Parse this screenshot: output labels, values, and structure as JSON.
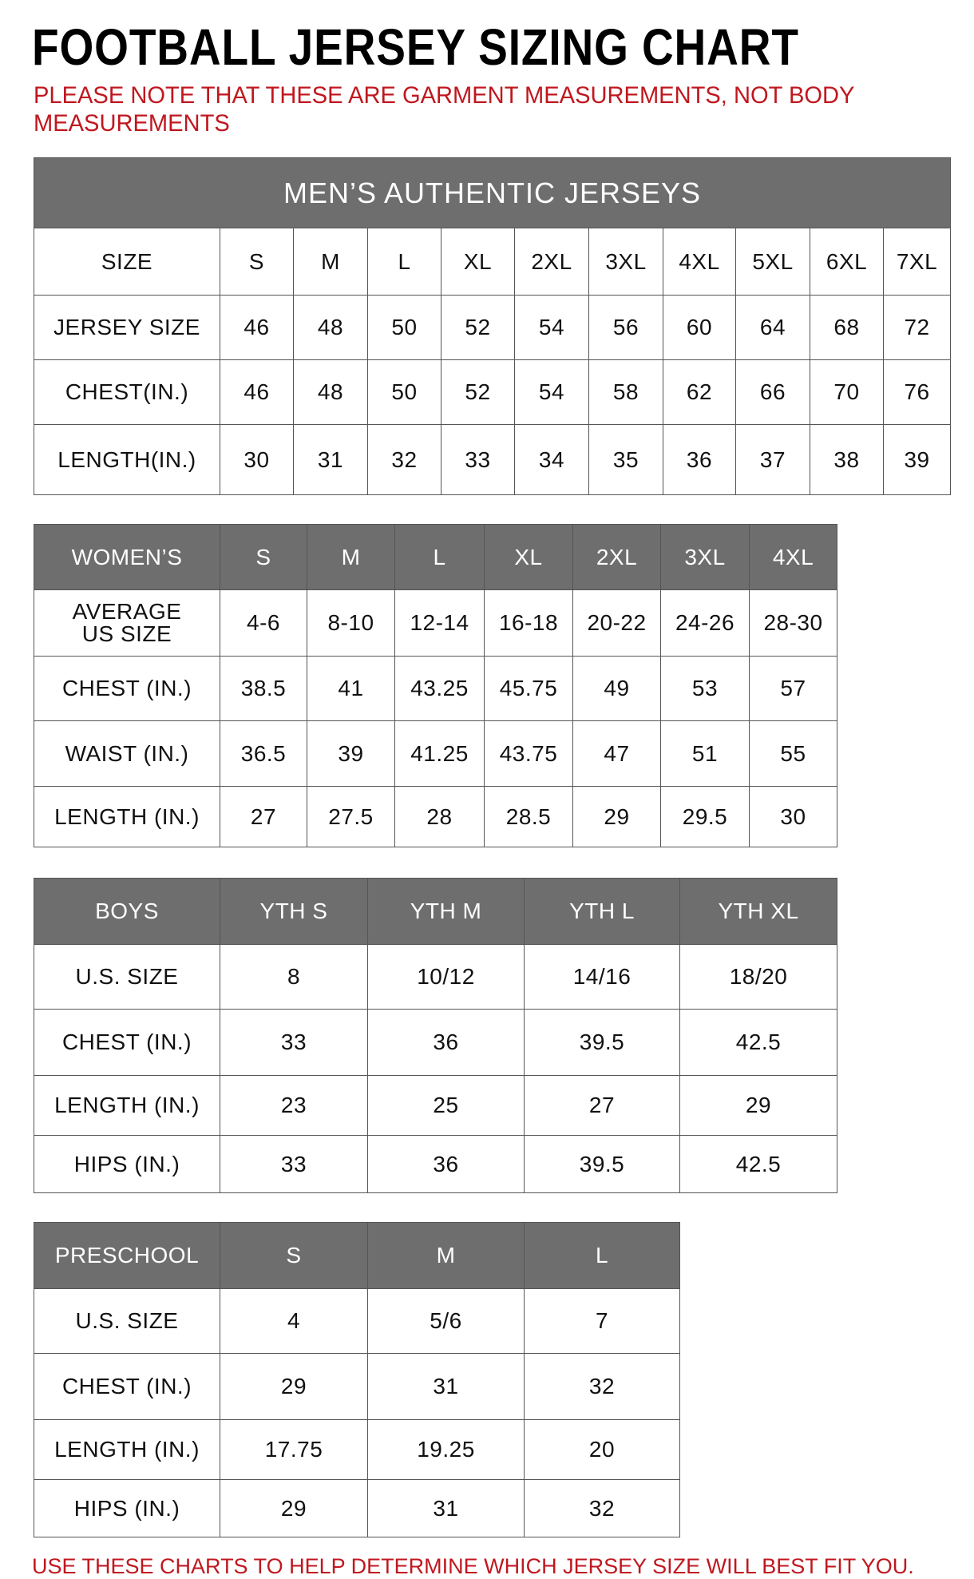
{
  "title": "FOOTBALL JERSEY SIZING CHART",
  "note": "PLEASE NOTE THAT THESE ARE GARMENT MEASUREMENTS, NOT BODY MEASUREMENTS",
  "footer": "USE THESE CHARTS TO HELP DETERMINE WHICH JERSEY SIZE WILL BEST FIT YOU.",
  "colors": {
    "header_bg": "#6e6e6e",
    "note_red": "#c0171f"
  },
  "tables": [
    {
      "id": "mens",
      "caption": "MEN’S AUTHENTIC JERSEYS",
      "header": [
        "SIZE",
        "S",
        "M",
        "L",
        "XL",
        "2XL",
        "3XL",
        "4XL",
        "5XL",
        "6XL",
        "7XL"
      ],
      "header_style": "plain",
      "rows": [
        [
          "JERSEY SIZE",
          "46",
          "48",
          "50",
          "52",
          "54",
          "56",
          "60",
          "64",
          "68",
          "72"
        ],
        [
          "CHEST(IN.)",
          "46",
          "48",
          "50",
          "52",
          "54",
          "58",
          "62",
          "66",
          "70",
          "76"
        ],
        [
          "LENGTH(IN.)",
          "30",
          "31",
          "32",
          "33",
          "34",
          "35",
          "36",
          "37",
          "38",
          "39"
        ]
      ]
    },
    {
      "id": "womens",
      "header": [
        "WOMEN’S",
        "S",
        "M",
        "L",
        "XL",
        "2XL",
        "3XL",
        "4XL"
      ],
      "header_style": "dark",
      "rows": [
        [
          "AVERAGE US SIZE",
          "4-6",
          "8-10",
          "12-14",
          "16-18",
          "20-22",
          "24-26",
          "28-30"
        ],
        [
          "CHEST (IN.)",
          "38.5",
          "41",
          "43.25",
          "45.75",
          "49",
          "53",
          "57"
        ],
        [
          "WAIST (IN.)",
          "36.5",
          "39",
          "41.25",
          "43.75",
          "47",
          "51",
          "55"
        ],
        [
          "LENGTH (IN.)",
          "27",
          "27.5",
          "28",
          "28.5",
          "29",
          "29.5",
          "30"
        ]
      ]
    },
    {
      "id": "boys",
      "header": [
        "BOYS",
        "YTH S",
        "YTH M",
        "YTH L",
        "YTH XL"
      ],
      "header_style": "dark",
      "rows": [
        [
          "U.S. SIZE",
          "8",
          "10/12",
          "14/16",
          "18/20"
        ],
        [
          "CHEST (IN.)",
          "33",
          "36",
          "39.5",
          "42.5"
        ],
        [
          "LENGTH (IN.)",
          "23",
          "25",
          "27",
          "29"
        ],
        [
          "HIPS (IN.)",
          "33",
          "36",
          "39.5",
          "42.5"
        ]
      ]
    },
    {
      "id": "preschool",
      "header": [
        "PRESCHOOL",
        "S",
        "M",
        "L"
      ],
      "header_style": "dark",
      "rows": [
        [
          "U.S. SIZE",
          "4",
          "5/6",
          "7"
        ],
        [
          "CHEST (IN.)",
          "29",
          "31",
          "32"
        ],
        [
          "LENGTH (IN.)",
          "17.75",
          "19.25",
          "20"
        ],
        [
          "HIPS (IN.)",
          "29",
          "31",
          "32"
        ]
      ]
    }
  ]
}
